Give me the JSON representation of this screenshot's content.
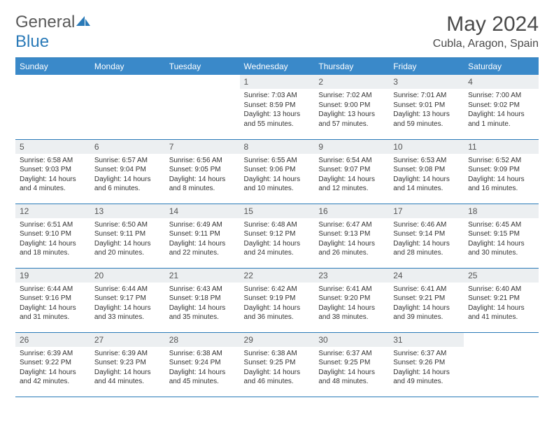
{
  "brand": {
    "part1": "General",
    "part2": "Blue"
  },
  "title": "May 2024",
  "location": "Cubla, Aragon, Spain",
  "colors": {
    "header_bg": "#3a89c9",
    "border": "#2a7ab8",
    "daynum_bg": "#eceff1",
    "text": "#333333",
    "title_text": "#4a4a4a"
  },
  "dayNames": [
    "Sunday",
    "Monday",
    "Tuesday",
    "Wednesday",
    "Thursday",
    "Friday",
    "Saturday"
  ],
  "weeks": [
    [
      {
        "n": "",
        "lines": []
      },
      {
        "n": "",
        "lines": []
      },
      {
        "n": "",
        "lines": []
      },
      {
        "n": "1",
        "lines": [
          "Sunrise: 7:03 AM",
          "Sunset: 8:59 PM",
          "Daylight: 13 hours",
          "and 55 minutes."
        ]
      },
      {
        "n": "2",
        "lines": [
          "Sunrise: 7:02 AM",
          "Sunset: 9:00 PM",
          "Daylight: 13 hours",
          "and 57 minutes."
        ]
      },
      {
        "n": "3",
        "lines": [
          "Sunrise: 7:01 AM",
          "Sunset: 9:01 PM",
          "Daylight: 13 hours",
          "and 59 minutes."
        ]
      },
      {
        "n": "4",
        "lines": [
          "Sunrise: 7:00 AM",
          "Sunset: 9:02 PM",
          "Daylight: 14 hours",
          "and 1 minute."
        ]
      }
    ],
    [
      {
        "n": "5",
        "lines": [
          "Sunrise: 6:58 AM",
          "Sunset: 9:03 PM",
          "Daylight: 14 hours",
          "and 4 minutes."
        ]
      },
      {
        "n": "6",
        "lines": [
          "Sunrise: 6:57 AM",
          "Sunset: 9:04 PM",
          "Daylight: 14 hours",
          "and 6 minutes."
        ]
      },
      {
        "n": "7",
        "lines": [
          "Sunrise: 6:56 AM",
          "Sunset: 9:05 PM",
          "Daylight: 14 hours",
          "and 8 minutes."
        ]
      },
      {
        "n": "8",
        "lines": [
          "Sunrise: 6:55 AM",
          "Sunset: 9:06 PM",
          "Daylight: 14 hours",
          "and 10 minutes."
        ]
      },
      {
        "n": "9",
        "lines": [
          "Sunrise: 6:54 AM",
          "Sunset: 9:07 PM",
          "Daylight: 14 hours",
          "and 12 minutes."
        ]
      },
      {
        "n": "10",
        "lines": [
          "Sunrise: 6:53 AM",
          "Sunset: 9:08 PM",
          "Daylight: 14 hours",
          "and 14 minutes."
        ]
      },
      {
        "n": "11",
        "lines": [
          "Sunrise: 6:52 AM",
          "Sunset: 9:09 PM",
          "Daylight: 14 hours",
          "and 16 minutes."
        ]
      }
    ],
    [
      {
        "n": "12",
        "lines": [
          "Sunrise: 6:51 AM",
          "Sunset: 9:10 PM",
          "Daylight: 14 hours",
          "and 18 minutes."
        ]
      },
      {
        "n": "13",
        "lines": [
          "Sunrise: 6:50 AM",
          "Sunset: 9:11 PM",
          "Daylight: 14 hours",
          "and 20 minutes."
        ]
      },
      {
        "n": "14",
        "lines": [
          "Sunrise: 6:49 AM",
          "Sunset: 9:11 PM",
          "Daylight: 14 hours",
          "and 22 minutes."
        ]
      },
      {
        "n": "15",
        "lines": [
          "Sunrise: 6:48 AM",
          "Sunset: 9:12 PM",
          "Daylight: 14 hours",
          "and 24 minutes."
        ]
      },
      {
        "n": "16",
        "lines": [
          "Sunrise: 6:47 AM",
          "Sunset: 9:13 PM",
          "Daylight: 14 hours",
          "and 26 minutes."
        ]
      },
      {
        "n": "17",
        "lines": [
          "Sunrise: 6:46 AM",
          "Sunset: 9:14 PM",
          "Daylight: 14 hours",
          "and 28 minutes."
        ]
      },
      {
        "n": "18",
        "lines": [
          "Sunrise: 6:45 AM",
          "Sunset: 9:15 PM",
          "Daylight: 14 hours",
          "and 30 minutes."
        ]
      }
    ],
    [
      {
        "n": "19",
        "lines": [
          "Sunrise: 6:44 AM",
          "Sunset: 9:16 PM",
          "Daylight: 14 hours",
          "and 31 minutes."
        ]
      },
      {
        "n": "20",
        "lines": [
          "Sunrise: 6:44 AM",
          "Sunset: 9:17 PM",
          "Daylight: 14 hours",
          "and 33 minutes."
        ]
      },
      {
        "n": "21",
        "lines": [
          "Sunrise: 6:43 AM",
          "Sunset: 9:18 PM",
          "Daylight: 14 hours",
          "and 35 minutes."
        ]
      },
      {
        "n": "22",
        "lines": [
          "Sunrise: 6:42 AM",
          "Sunset: 9:19 PM",
          "Daylight: 14 hours",
          "and 36 minutes."
        ]
      },
      {
        "n": "23",
        "lines": [
          "Sunrise: 6:41 AM",
          "Sunset: 9:20 PM",
          "Daylight: 14 hours",
          "and 38 minutes."
        ]
      },
      {
        "n": "24",
        "lines": [
          "Sunrise: 6:41 AM",
          "Sunset: 9:21 PM",
          "Daylight: 14 hours",
          "and 39 minutes."
        ]
      },
      {
        "n": "25",
        "lines": [
          "Sunrise: 6:40 AM",
          "Sunset: 9:21 PM",
          "Daylight: 14 hours",
          "and 41 minutes."
        ]
      }
    ],
    [
      {
        "n": "26",
        "lines": [
          "Sunrise: 6:39 AM",
          "Sunset: 9:22 PM",
          "Daylight: 14 hours",
          "and 42 minutes."
        ]
      },
      {
        "n": "27",
        "lines": [
          "Sunrise: 6:39 AM",
          "Sunset: 9:23 PM",
          "Daylight: 14 hours",
          "and 44 minutes."
        ]
      },
      {
        "n": "28",
        "lines": [
          "Sunrise: 6:38 AM",
          "Sunset: 9:24 PM",
          "Daylight: 14 hours",
          "and 45 minutes."
        ]
      },
      {
        "n": "29",
        "lines": [
          "Sunrise: 6:38 AM",
          "Sunset: 9:25 PM",
          "Daylight: 14 hours",
          "and 46 minutes."
        ]
      },
      {
        "n": "30",
        "lines": [
          "Sunrise: 6:37 AM",
          "Sunset: 9:25 PM",
          "Daylight: 14 hours",
          "and 48 minutes."
        ]
      },
      {
        "n": "31",
        "lines": [
          "Sunrise: 6:37 AM",
          "Sunset: 9:26 PM",
          "Daylight: 14 hours",
          "and 49 minutes."
        ]
      },
      {
        "n": "",
        "lines": []
      }
    ]
  ]
}
